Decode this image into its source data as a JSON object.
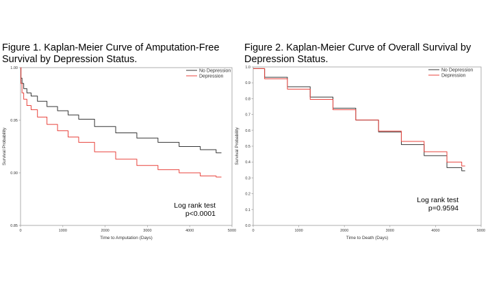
{
  "figures": [
    {
      "title_line1": "Figure 1. Kaplan-Meier Curve of Amputation-Free",
      "title_line2": "Survival by Depression Status."
    },
    {
      "title_line1": "Figure 2. Kaplan-Meier Curve of Overall Survival by",
      "title_line2": "Depression Status."
    }
  ],
  "colors": {
    "no_depression": "#333333",
    "depression": "#e8413a",
    "axis": "#9a9a9a"
  },
  "chart_data": [
    {
      "type": "line",
      "xlabel": "Time to Amputation (Days)",
      "ylabel": "Survival Probability",
      "xlim": [
        0,
        5000
      ],
      "ylim": [
        0.85,
        1.0
      ],
      "xticks": [
        0,
        1000,
        2000,
        3000,
        4000,
        5000
      ],
      "xtick_labels": [
        "0",
        "1000",
        "2000",
        "3000",
        "4000",
        "5000"
      ],
      "yticks": [
        0.85,
        0.9,
        0.95,
        1.0
      ],
      "ytick_labels": [
        "0.85",
        "0.90",
        "0.95",
        "1.00"
      ],
      "grid": false,
      "legend_position": "top-right",
      "series": [
        {
          "name": "No Depression",
          "color": "#333333",
          "x": [
            0,
            20,
            50,
            100,
            200,
            300,
            500,
            750,
            1000,
            1250,
            1500,
            2000,
            2500,
            3000,
            3500,
            4000,
            4500,
            4750
          ],
          "y": [
            1.0,
            0.99,
            0.985,
            0.98,
            0.976,
            0.973,
            0.968,
            0.963,
            0.959,
            0.955,
            0.951,
            0.944,
            0.938,
            0.933,
            0.929,
            0.925,
            0.922,
            0.919
          ]
        },
        {
          "name": "Depression",
          "color": "#e8413a",
          "x": [
            0,
            20,
            50,
            100,
            200,
            300,
            500,
            750,
            1000,
            1250,
            1500,
            2000,
            2500,
            3000,
            3500,
            4000,
            4500,
            4750
          ],
          "y": [
            1.0,
            0.985,
            0.976,
            0.97,
            0.964,
            0.96,
            0.953,
            0.946,
            0.94,
            0.934,
            0.929,
            0.92,
            0.913,
            0.907,
            0.903,
            0.9,
            0.897,
            0.896
          ]
        }
      ],
      "annotation": {
        "line1": "Log rank test",
        "line2": "p<0.0001"
      }
    },
    {
      "type": "line",
      "xlabel": "Time to Death (Days)",
      "ylabel": "Survival Probability",
      "xlim": [
        0,
        5000
      ],
      "ylim": [
        0,
        1.0
      ],
      "xticks": [
        0,
        1000,
        2000,
        3000,
        4000,
        5000
      ],
      "xtick_labels": [
        "0",
        "1000",
        "2000",
        "3000",
        "4000",
        "5000"
      ],
      "yticks": [
        0,
        0.1,
        0.2,
        0.3,
        0.4,
        0.5,
        0.6,
        0.7,
        0.8,
        0.9,
        1.0
      ],
      "ytick_labels": [
        "0.0",
        "0.1",
        "0.2",
        "0.3",
        "0.4",
        "0.5",
        "0.6",
        "0.7",
        "0.8",
        "0.9",
        "1.0"
      ],
      "grid": false,
      "legend_position": "top-right",
      "series": [
        {
          "name": "No Depression",
          "color": "#333333",
          "x": [
            0,
            500,
            1000,
            1500,
            2000,
            2500,
            3000,
            3500,
            4000,
            4500,
            4650
          ],
          "y": [
            0.99,
            0.935,
            0.875,
            0.81,
            0.74,
            0.665,
            0.59,
            0.51,
            0.44,
            0.365,
            0.345
          ]
        },
        {
          "name": "Depression",
          "color": "#e8413a",
          "x": [
            0,
            500,
            1000,
            1500,
            2000,
            2500,
            3000,
            3500,
            4000,
            4500,
            4650
          ],
          "y": [
            0.99,
            0.925,
            0.86,
            0.795,
            0.73,
            0.665,
            0.595,
            0.53,
            0.465,
            0.4,
            0.375
          ]
        }
      ],
      "annotation": {
        "line1": "Log rank test",
        "line2": "p=0.9594"
      }
    }
  ]
}
